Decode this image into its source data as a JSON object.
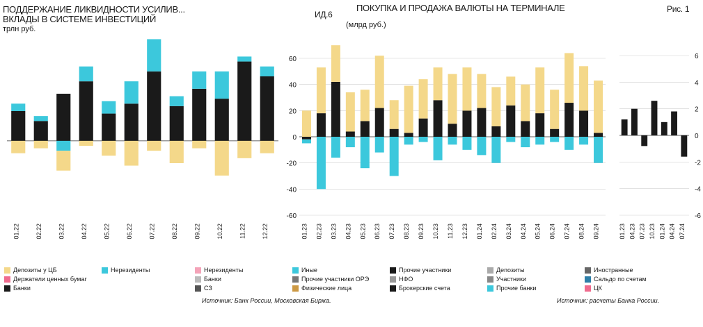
{
  "page": {
    "left_title": "ПОДДЕРЖАНИЕ ЛИКВИДНОСТИ УСИЛИВ...",
    "left_subtitle": "ВКЛАДЫ В СИСТЕМЕ ИНВЕСТИЦИЙ",
    "left_unit": "трлн руб.",
    "mid_title_code": "ИД.6",
    "mid_title": "ПОКУПКА И ПРОДАЖА ВАЛЮТЫ НА ТЕРМИНАЛЕ",
    "mid_subtitle": "(млрд руб.)",
    "right_title_code": "Рис. 1",
    "source_mid": "Источник: Банк России, Московская Биржа.",
    "source_right": "Источник: расчеты Банка России."
  },
  "legend_left": [
    {
      "label": "Депозиты у ЦБ",
      "color": "#f4d88a"
    },
    {
      "label": "Держатели ценных бумаг",
      "color": "#f06b8e"
    },
    {
      "label": "Банки",
      "color": "#1a1a1a"
    },
    {
      "label": "Нерезиденты",
      "color": "#3cc8dc"
    }
  ],
  "legend_mid": [
    {
      "label": "Нерезиденты",
      "color": "#f4a3b8"
    },
    {
      "label": "Банки",
      "color": "#bbbbbb"
    },
    {
      "label": "СЗ",
      "color": "#555555"
    },
    {
      "label": "Иные",
      "color": "#3cc8dc"
    },
    {
      "label": "Прочие участники ОРЭ",
      "color": "#777777"
    },
    {
      "label": "Физические лица",
      "color": "#cc9944"
    },
    {
      "label": "Прочие участники",
      "color": "#1a1a1a"
    },
    {
      "label": "НФО",
      "color": "#999999"
    },
    {
      "label": "Брокерские счета",
      "color": "#1a1a1a"
    },
    {
      "label": "Депозиты",
      "color": "#aaaaaa"
    },
    {
      "label": "Участники",
      "color": "#888888"
    },
    {
      "label": "Прочие банки",
      "color": "#3cc8dc"
    },
    {
      "label": "Иностранные",
      "color": "#666666"
    },
    {
      "label": "Сальдо по счетам",
      "color": "#2e7fa8"
    },
    {
      "label": "ЦК",
      "color": "#f06b8e"
    }
  ],
  "chart_data": [
    {
      "type": "bar",
      "title": "ВКЛАДЫ В СИСТЕМЕ ИНВЕСТИЦИЙ",
      "ylabel": "трлн руб.",
      "categories": [
        "01.22",
        "02.22",
        "03.22",
        "04.22",
        "05.22",
        "06.22",
        "07.22",
        "08.22",
        "09.22",
        "10.22",
        "11.22",
        "12.22"
      ],
      "series": [
        {
          "name": "Банки",
          "values": [
            1.2,
            0.8,
            1.9,
            2.4,
            1.1,
            1.5,
            2.8,
            1.4,
            2.1,
            1.7,
            3.2,
            2.6
          ]
        },
        {
          "name": "Нерезиденты",
          "values": [
            0.3,
            0.2,
            -0.4,
            0.6,
            0.5,
            0.9,
            1.3,
            0.4,
            0.7,
            1.1,
            0.2,
            0.4
          ]
        },
        {
          "name": "Депозиты у ЦБ",
          "values": [
            -0.5,
            -0.3,
            -0.8,
            -0.2,
            -0.6,
            -1.0,
            -0.4,
            -0.9,
            -0.3,
            -1.4,
            -0.7,
            -0.5
          ]
        }
      ],
      "ylim": [
        -3,
        4
      ]
    },
    {
      "type": "bar",
      "title": "ПОКУПКА И ПРОДАЖА ВАЛЮТЫ НА ТЕРМИНАЛЕ",
      "ylabel": "млрд руб.",
      "categories": [
        "01.23",
        "02.23",
        "03.23",
        "04.23",
        "05.23",
        "06.23",
        "07.23",
        "08.23",
        "09.23",
        "10.23",
        "11.23",
        "12.23",
        "01.24",
        "02.24",
        "03.24",
        "04.24",
        "05.24",
        "06.24",
        "07.24",
        "08.24",
        "09.24"
      ],
      "series": [
        {
          "name": "Иные",
          "values": [
            -2,
            18,
            42,
            4,
            12,
            22,
            6,
            3,
            14,
            28,
            10,
            20,
            22,
            8,
            24,
            12,
            18,
            6,
            26,
            20,
            3
          ]
        },
        {
          "name": "Физические лица",
          "values": [
            -3,
            -40,
            -16,
            -8,
            -24,
            -12,
            -30,
            -6,
            -4,
            -18,
            -6,
            -10,
            -14,
            -20,
            -4,
            -8,
            -6,
            -4,
            -10,
            -6,
            -20
          ]
        },
        {
          "name": "Банки",
          "values": [
            20,
            35,
            28,
            30,
            24,
            40,
            22,
            36,
            30,
            25,
            38,
            33,
            26,
            30,
            22,
            28,
            35,
            30,
            38,
            34,
            40
          ]
        }
      ],
      "yticks": [
        -60,
        -40,
        -20,
        0,
        20,
        40,
        60
      ],
      "ylim": [
        -60,
        60
      ]
    },
    {
      "type": "bar",
      "title_code": "Рис. 1",
      "categories": [
        "01.23",
        "04.23",
        "07.23",
        "10.23",
        "01.24",
        "04.24",
        "07.24"
      ],
      "series": [
        {
          "name": "Сальдо",
          "values": [
            1.2,
            2.0,
            -0.8,
            2.6,
            1.0,
            1.8,
            -1.6
          ]
        }
      ],
      "yticks": [
        -6,
        -4,
        -2,
        0,
        2,
        4,
        6
      ],
      "ylim": [
        -6,
        6
      ]
    }
  ]
}
